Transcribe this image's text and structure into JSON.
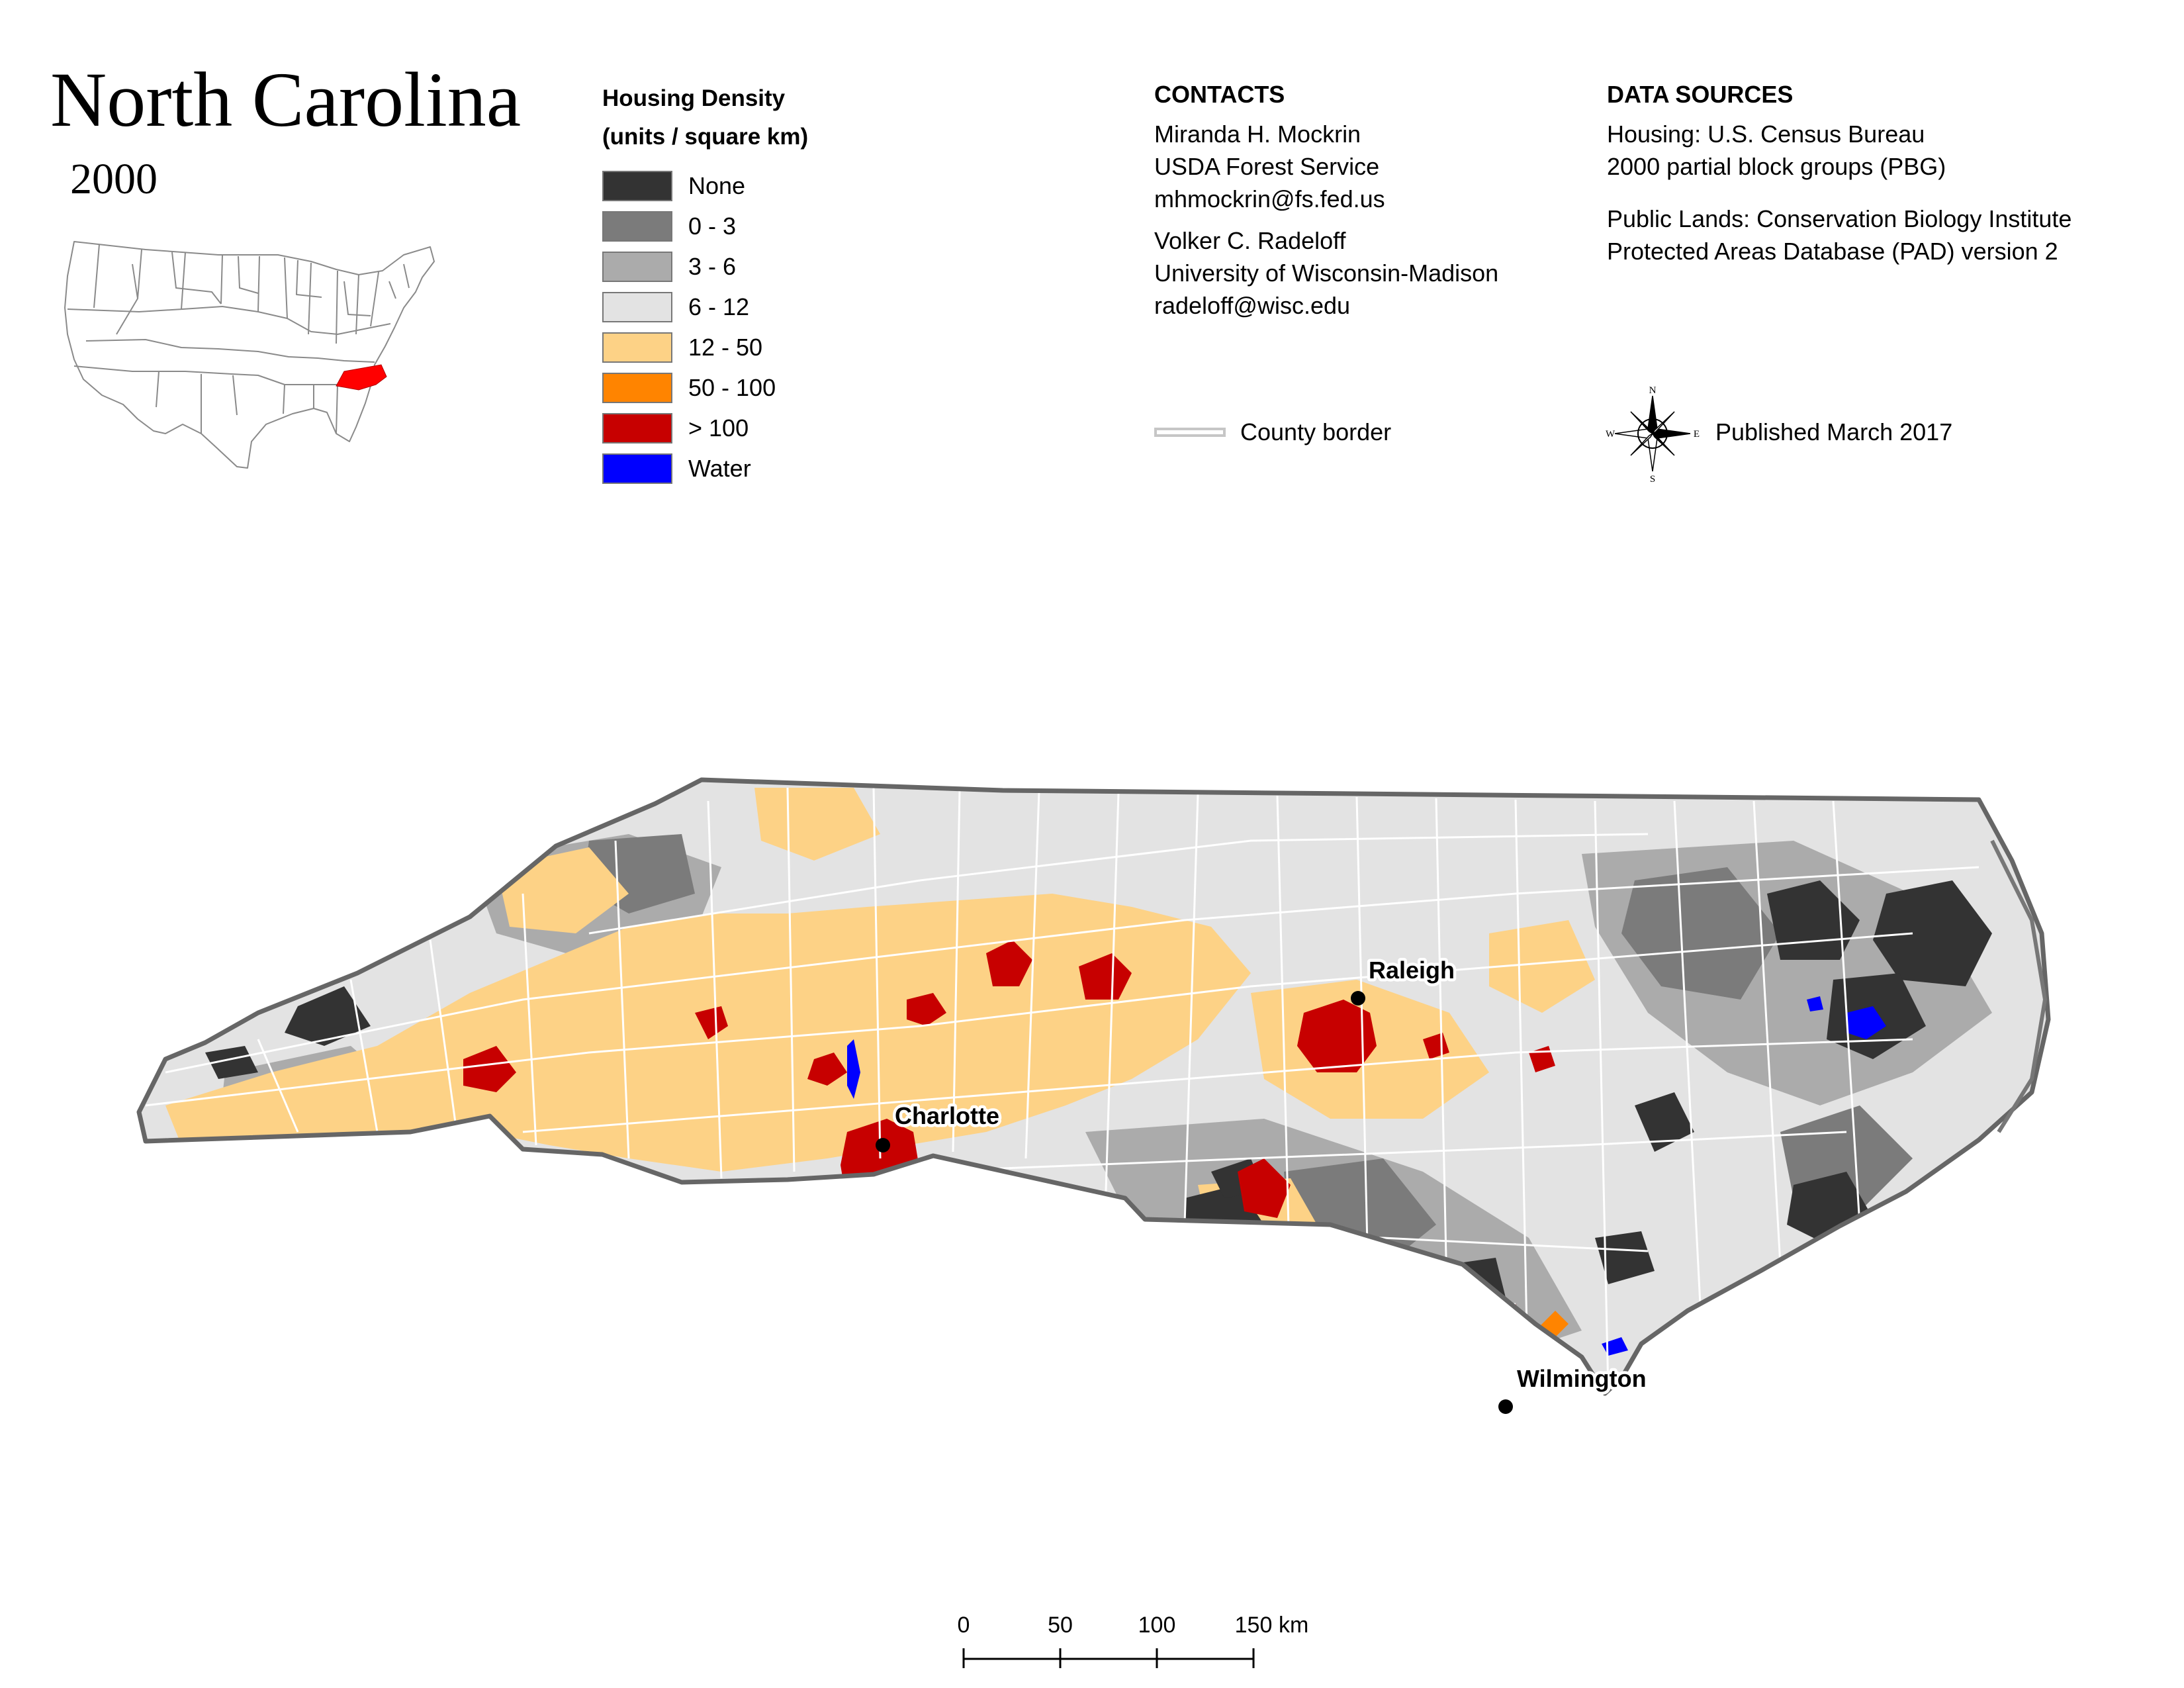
{
  "title": "North Carolina",
  "year": "2000",
  "legend": {
    "title_line1": "Housing Density",
    "title_line2": "(units / square km)",
    "items": [
      {
        "label": "None",
        "color": "#333333"
      },
      {
        "label": "0 - 3",
        "color": "#7b7b7b"
      },
      {
        "label": "3 - 6",
        "color": "#ababab"
      },
      {
        "label": "6 - 12",
        "color": "#e3e3e3"
      },
      {
        "label": "12 - 50",
        "color": "#fdd286"
      },
      {
        "label": "50 - 100",
        "color": "#ff8400"
      },
      {
        "label": "> 100",
        "color": "#c70000"
      },
      {
        "label": "Water",
        "color": "#0000ff"
      }
    ]
  },
  "contacts": {
    "heading": "CONTACTS",
    "person1": [
      "Miranda H. Mockrin",
      "USDA Forest Service",
      "mhmockrin@fs.fed.us"
    ],
    "person2": [
      "Volker C. Radeloff",
      "University of Wisconsin-Madison",
      "radeloff@wisc.edu"
    ]
  },
  "data_sources": {
    "heading": "DATA SOURCES",
    "housing": [
      "Housing: U.S. Census Bureau",
      "2000 partial block groups (PBG)"
    ],
    "public_lands": [
      "Public Lands: Conservation Biology Institute",
      "Protected Areas Database (PAD) version 2"
    ]
  },
  "county_border_label": "County border",
  "published": "Published March 2017",
  "compass": {
    "n": "N",
    "s": "S",
    "e": "E",
    "w": "W"
  },
  "cities": [
    {
      "name": "Raleigh"
    },
    {
      "name": "Charlotte"
    },
    {
      "name": "Wilmington"
    }
  ],
  "scale_bar": {
    "ticks": [
      "0",
      "50",
      "100",
      "150"
    ],
    "unit": "km"
  },
  "inset": {
    "highlight_state": "North Carolina",
    "highlight_color": "#ff0000"
  }
}
